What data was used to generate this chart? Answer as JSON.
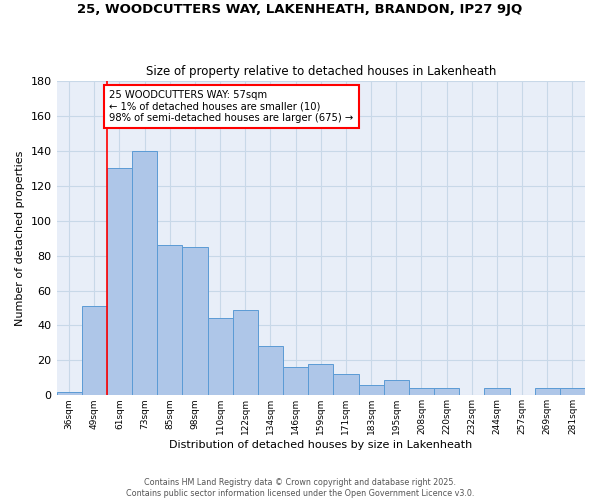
{
  "title": "25, WOODCUTTERS WAY, LAKENHEATH, BRANDON, IP27 9JQ",
  "subtitle": "Size of property relative to detached houses in Lakenheath",
  "xlabel": "Distribution of detached houses by size in Lakenheath",
  "ylabel": "Number of detached properties",
  "categories": [
    "36sqm",
    "49sqm",
    "61sqm",
    "73sqm",
    "85sqm",
    "98sqm",
    "110sqm",
    "122sqm",
    "134sqm",
    "146sqm",
    "159sqm",
    "171sqm",
    "183sqm",
    "195sqm",
    "208sqm",
    "220sqm",
    "232sqm",
    "244sqm",
    "257sqm",
    "269sqm",
    "281sqm"
  ],
  "values": [
    2,
    51,
    130,
    140,
    86,
    85,
    44,
    49,
    28,
    16,
    18,
    12,
    6,
    9,
    4,
    4,
    0,
    4,
    0,
    4,
    4
  ],
  "bar_color": "#aec6e8",
  "bar_edge_color": "#5b9bd5",
  "grid_color": "#c8d8e8",
  "background_color": "#e8eef8",
  "annotation_text": "25 WOODCUTTERS WAY: 57sqm\n← 1% of detached houses are smaller (10)\n98% of semi-detached houses are larger (675) →",
  "ylim": [
    0,
    180
  ],
  "yticks": [
    0,
    20,
    40,
    60,
    80,
    100,
    120,
    140,
    160,
    180
  ],
  "footer1": "Contains HM Land Registry data © Crown copyright and database right 2025.",
  "footer2": "Contains public sector information licensed under the Open Government Licence v3.0."
}
